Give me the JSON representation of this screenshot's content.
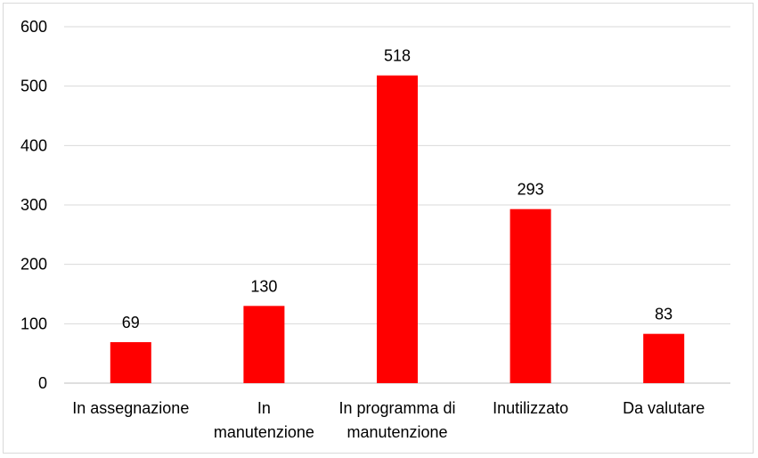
{
  "chart_data": {
    "type": "bar",
    "title": "",
    "xlabel": "",
    "ylabel": "",
    "categories": [
      [
        "In assegnazione"
      ],
      [
        "In",
        "manutenzione"
      ],
      [
        "In programma di",
        "manutenzione"
      ],
      [
        "Inutilizzato"
      ],
      [
        "Da valutare"
      ]
    ],
    "values": [
      69,
      130,
      518,
      293,
      83
    ],
    "data_labels": [
      "69",
      "130",
      "518",
      "293",
      "83"
    ],
    "yticks": [
      "0",
      "100",
      "200",
      "300",
      "400",
      "500",
      "600"
    ],
    "ylim": [
      0,
      600
    ],
    "grid": true,
    "legend": "none",
    "colors": {
      "bar": "#ff0000",
      "grid": "#d9d9d9",
      "axis": "#bfbfbf",
      "text": "#000000",
      "border": "#d9d9d9"
    }
  }
}
